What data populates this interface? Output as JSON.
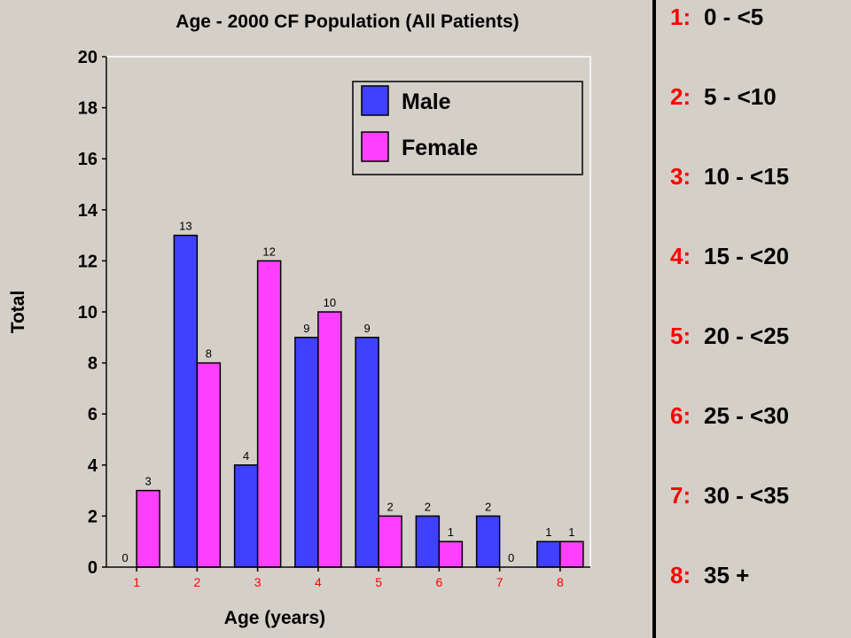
{
  "chart_data": {
    "type": "bar",
    "title": "Age - 2000 CF Population  (All Patients)",
    "xlabel": "Age (years)",
    "ylabel": "Total",
    "ylim": [
      0,
      20
    ],
    "yticks": [
      0,
      2,
      4,
      6,
      8,
      10,
      12,
      14,
      16,
      18,
      20
    ],
    "categories": [
      "1",
      "2",
      "3",
      "4",
      "5",
      "6",
      "7",
      "8"
    ],
    "series": [
      {
        "name": "Male",
        "color": "#4040ff",
        "values": [
          0,
          13,
          4,
          9,
          9,
          2,
          2,
          1
        ]
      },
      {
        "name": "Female",
        "color": "#ff40ff",
        "values": [
          3,
          8,
          12,
          10,
          2,
          1,
          0,
          1
        ]
      }
    ],
    "legend_position": "top-right",
    "grid": false
  },
  "key": {
    "items": [
      {
        "num": "1:",
        "range": "0 - <5"
      },
      {
        "num": "2:",
        "range": "5 - <10"
      },
      {
        "num": "3:",
        "range": "10 - <15"
      },
      {
        "num": "4:",
        "range": "15 - <20"
      },
      {
        "num": "5:",
        "range": "20 - <25"
      },
      {
        "num": "6:",
        "range": "25 - <30"
      },
      {
        "num": "7:",
        "range": "30 - <35"
      },
      {
        "num": "8:",
        "range": "35 +"
      }
    ]
  }
}
